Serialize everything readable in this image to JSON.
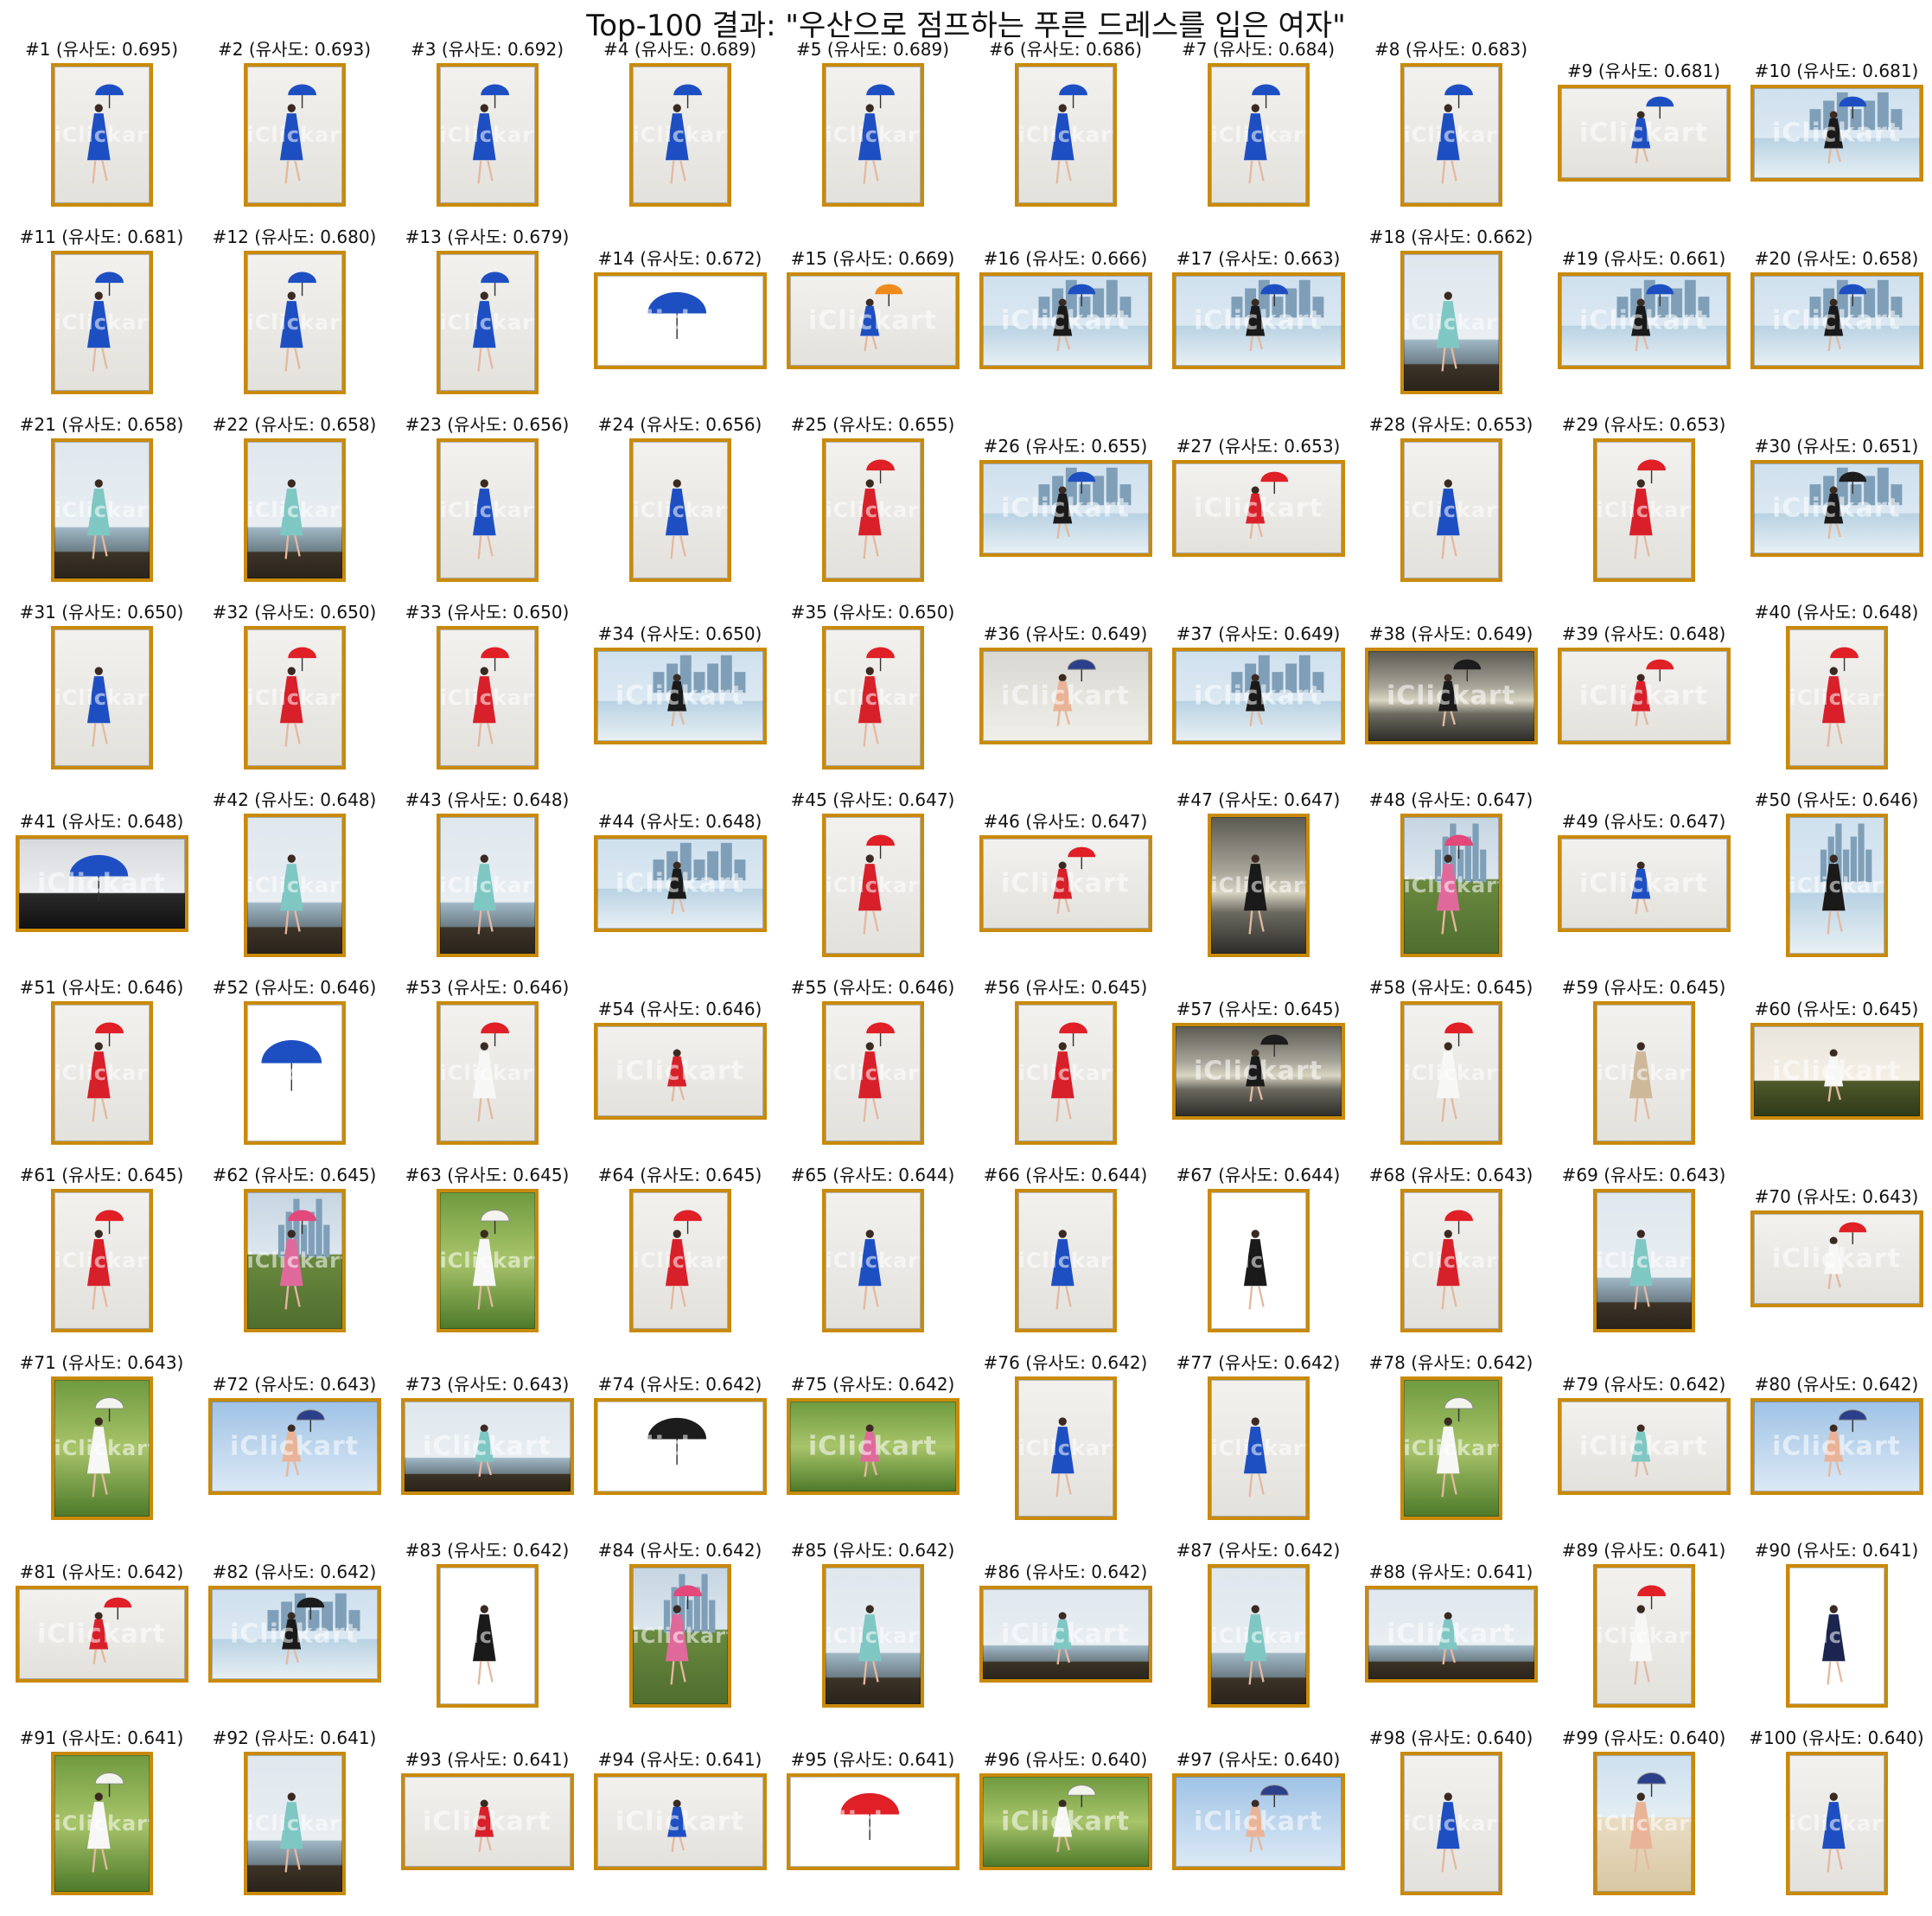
{
  "title": "Top-100 결과: \"우산으로 점프하는 푸른 드레스를 입은 여자\"",
  "watermark": "iClickart",
  "colors": {
    "frame": "#c98a0a",
    "blue": "#1e4fc2",
    "red": "#d8202a",
    "studio": "#eceae6"
  },
  "results": [
    {
      "rank": 1,
      "score": "0.695",
      "shape": "portrait",
      "scene": "studio",
      "dress": "blue",
      "umbrella": "blue"
    },
    {
      "rank": 2,
      "score": "0.693",
      "shape": "portrait",
      "scene": "studio",
      "dress": "blue",
      "umbrella": "blue"
    },
    {
      "rank": 3,
      "score": "0.692",
      "shape": "portrait",
      "scene": "studio",
      "dress": "blue",
      "umbrella": "blue"
    },
    {
      "rank": 4,
      "score": "0.689",
      "shape": "portrait",
      "scene": "studio",
      "dress": "blue",
      "umbrella": "blue"
    },
    {
      "rank": 5,
      "score": "0.689",
      "shape": "portrait",
      "scene": "studio",
      "dress": "blue",
      "umbrella": "blue"
    },
    {
      "rank": 6,
      "score": "0.686",
      "shape": "portrait",
      "scene": "studio",
      "dress": "blue",
      "umbrella": "blue"
    },
    {
      "rank": 7,
      "score": "0.684",
      "shape": "portrait",
      "scene": "studio",
      "dress": "blue",
      "umbrella": "blue"
    },
    {
      "rank": 8,
      "score": "0.683",
      "shape": "portrait",
      "scene": "studio",
      "dress": "blue",
      "umbrella": "blue"
    },
    {
      "rank": 9,
      "score": "0.681",
      "shape": "landscape",
      "scene": "studio",
      "dress": "blue",
      "umbrella": "blue"
    },
    {
      "rank": 10,
      "score": "0.681",
      "shape": "landscape",
      "scene": "city",
      "dress": "black",
      "umbrella": "blue"
    },
    {
      "rank": 11,
      "score": "0.681",
      "shape": "portrait",
      "scene": "studio",
      "dress": "blue",
      "umbrella": "blue"
    },
    {
      "rank": 12,
      "score": "0.680",
      "shape": "portrait",
      "scene": "studio",
      "dress": "blue",
      "umbrella": "blue"
    },
    {
      "rank": 13,
      "score": "0.679",
      "shape": "portrait",
      "scene": "studio",
      "dress": "blue",
      "umbrella": "blue"
    },
    {
      "rank": 14,
      "score": "0.672",
      "shape": "landscape",
      "scene": "white",
      "dress": "none",
      "umbrella": "blue"
    },
    {
      "rank": 15,
      "score": "0.669",
      "shape": "landscape",
      "scene": "studio",
      "dress": "blue",
      "umbrella": "orange"
    },
    {
      "rank": 16,
      "score": "0.666",
      "shape": "landscape",
      "scene": "city",
      "dress": "black",
      "umbrella": "blue"
    },
    {
      "rank": 17,
      "score": "0.663",
      "shape": "landscape",
      "scene": "city",
      "dress": "black",
      "umbrella": "blue"
    },
    {
      "rank": 18,
      "score": "0.662",
      "shape": "portrait",
      "scene": "sea",
      "dress": "teal",
      "umbrella": "none"
    },
    {
      "rank": 19,
      "score": "0.661",
      "shape": "landscape",
      "scene": "city",
      "dress": "black",
      "umbrella": "blue"
    },
    {
      "rank": 20,
      "score": "0.658",
      "shape": "landscape",
      "scene": "city",
      "dress": "black",
      "umbrella": "blue"
    },
    {
      "rank": 21,
      "score": "0.658",
      "shape": "portrait",
      "scene": "sea",
      "dress": "teal",
      "umbrella": "none"
    },
    {
      "rank": 22,
      "score": "0.658",
      "shape": "portrait",
      "scene": "sea",
      "dress": "teal",
      "umbrella": "none"
    },
    {
      "rank": 23,
      "score": "0.656",
      "shape": "portrait",
      "scene": "studio",
      "dress": "blue",
      "umbrella": "none"
    },
    {
      "rank": 24,
      "score": "0.656",
      "shape": "portrait",
      "scene": "studio",
      "dress": "blue",
      "umbrella": "none"
    },
    {
      "rank": 25,
      "score": "0.655",
      "shape": "portrait",
      "scene": "studio",
      "dress": "red",
      "umbrella": "red"
    },
    {
      "rank": 26,
      "score": "0.655",
      "shape": "landscape",
      "scene": "city",
      "dress": "black",
      "umbrella": "blue"
    },
    {
      "rank": 27,
      "score": "0.653",
      "shape": "landscape",
      "scene": "studio",
      "dress": "red",
      "umbrella": "red"
    },
    {
      "rank": 28,
      "score": "0.653",
      "shape": "portrait",
      "scene": "studio",
      "dress": "blue",
      "umbrella": "none"
    },
    {
      "rank": 29,
      "score": "0.653",
      "shape": "portrait",
      "scene": "studio",
      "dress": "red",
      "umbrella": "red"
    },
    {
      "rank": 30,
      "score": "0.651",
      "shape": "landscape",
      "scene": "city",
      "dress": "black",
      "umbrella": "black"
    },
    {
      "rank": 31,
      "score": "0.650",
      "shape": "portrait",
      "scene": "studio",
      "dress": "blue",
      "umbrella": "none"
    },
    {
      "rank": 32,
      "score": "0.650",
      "shape": "portrait",
      "scene": "studio",
      "dress": "red",
      "umbrella": "red"
    },
    {
      "rank": 33,
      "score": "0.650",
      "shape": "portrait",
      "scene": "studio",
      "dress": "red",
      "umbrella": "red"
    },
    {
      "rank": 34,
      "score": "0.650",
      "shape": "landscape",
      "scene": "city",
      "dress": "black",
      "umbrella": "none"
    },
    {
      "rank": 35,
      "score": "0.650",
      "shape": "portrait",
      "scene": "studio",
      "dress": "red",
      "umbrella": "red"
    },
    {
      "rank": 36,
      "score": "0.649",
      "shape": "landscape",
      "scene": "portrait",
      "dress": "skin",
      "umbrella": "stripe"
    },
    {
      "rank": 37,
      "score": "0.649",
      "shape": "landscape",
      "scene": "city",
      "dress": "black",
      "umbrella": "none"
    },
    {
      "rank": 38,
      "score": "0.649",
      "shape": "landscape",
      "scene": "sunset",
      "dress": "black",
      "umbrella": "black"
    },
    {
      "rank": 39,
      "score": "0.648",
      "shape": "landscape",
      "scene": "studio",
      "dress": "red",
      "umbrella": "red"
    },
    {
      "rank": 40,
      "score": "0.648",
      "shape": "portrait",
      "scene": "studio",
      "dress": "red",
      "umbrella": "red"
    },
    {
      "rank": 41,
      "score": "0.648",
      "shape": "landscape",
      "scene": "umbrellas",
      "dress": "none",
      "umbrella": "blue"
    },
    {
      "rank": 42,
      "score": "0.648",
      "shape": "portrait",
      "scene": "sea",
      "dress": "teal",
      "umbrella": "none"
    },
    {
      "rank": 43,
      "score": "0.648",
      "shape": "portrait",
      "scene": "sea",
      "dress": "teal",
      "umbrella": "none"
    },
    {
      "rank": 44,
      "score": "0.648",
      "shape": "landscape",
      "scene": "city",
      "dress": "black",
      "umbrella": "none"
    },
    {
      "rank": 45,
      "score": "0.647",
      "shape": "portrait",
      "scene": "studio",
      "dress": "red",
      "umbrella": "red"
    },
    {
      "rank": 46,
      "score": "0.647",
      "shape": "landscape",
      "scene": "studio",
      "dress": "red",
      "umbrella": "red"
    },
    {
      "rank": 47,
      "score": "0.647",
      "shape": "portrait",
      "scene": "sunset",
      "dress": "black",
      "umbrella": "none"
    },
    {
      "rank": 48,
      "score": "0.647",
      "shape": "portrait",
      "scene": "park-city",
      "dress": "pink",
      "umbrella": "rainbow"
    },
    {
      "rank": 49,
      "score": "0.647",
      "shape": "landscape",
      "scene": "studio",
      "dress": "blue",
      "umbrella": "none"
    },
    {
      "rank": 50,
      "score": "0.646",
      "shape": "portrait",
      "scene": "city",
      "dress": "black",
      "umbrella": "none"
    },
    {
      "rank": 51,
      "score": "0.646",
      "shape": "portrait",
      "scene": "studio",
      "dress": "red",
      "umbrella": "red"
    },
    {
      "rank": 52,
      "score": "0.646",
      "shape": "portrait",
      "scene": "white",
      "dress": "none",
      "umbrella": "blue"
    },
    {
      "rank": 53,
      "score": "0.646",
      "shape": "portrait",
      "scene": "studio",
      "dress": "white",
      "umbrella": "red"
    },
    {
      "rank": 54,
      "score": "0.646",
      "shape": "landscape",
      "scene": "studio",
      "dress": "red",
      "umbrella": "none"
    },
    {
      "rank": 55,
      "score": "0.646",
      "shape": "portrait",
      "scene": "studio",
      "dress": "red",
      "umbrella": "red"
    },
    {
      "rank": 56,
      "score": "0.645",
      "shape": "portrait",
      "scene": "studio",
      "dress": "red",
      "umbrella": "red"
    },
    {
      "rank": 57,
      "score": "0.645",
      "shape": "landscape",
      "scene": "sunset",
      "dress": "black",
      "umbrella": "black"
    },
    {
      "rank": 58,
      "score": "0.645",
      "shape": "portrait",
      "scene": "studio",
      "dress": "white",
      "umbrella": "red"
    },
    {
      "rank": 59,
      "score": "0.645",
      "shape": "portrait",
      "scene": "studio",
      "dress": "beige",
      "umbrella": "none"
    },
    {
      "rank": 60,
      "score": "0.645",
      "shape": "landscape",
      "scene": "field",
      "dress": "white",
      "umbrella": "none"
    },
    {
      "rank": 61,
      "score": "0.645",
      "shape": "portrait",
      "scene": "studio",
      "dress": "red",
      "umbrella": "red"
    },
    {
      "rank": 62,
      "score": "0.645",
      "shape": "portrait",
      "scene": "park-city",
      "dress": "pink",
      "umbrella": "rainbow"
    },
    {
      "rank": 63,
      "score": "0.645",
      "shape": "portrait",
      "scene": "forest",
      "dress": "white",
      "umbrella": "white"
    },
    {
      "rank": 64,
      "score": "0.645",
      "shape": "portrait",
      "scene": "studio",
      "dress": "red",
      "umbrella": "red"
    },
    {
      "rank": 65,
      "score": "0.644",
      "shape": "portrait",
      "scene": "studio",
      "dress": "blue",
      "umbrella": "none"
    },
    {
      "rank": 66,
      "score": "0.644",
      "shape": "portrait",
      "scene": "studio",
      "dress": "blue",
      "umbrella": "none"
    },
    {
      "rank": 67,
      "score": "0.644",
      "shape": "portrait",
      "scene": "white",
      "dress": "black",
      "umbrella": "none"
    },
    {
      "rank": 68,
      "score": "0.643",
      "shape": "portrait",
      "scene": "studio",
      "dress": "red",
      "umbrella": "red"
    },
    {
      "rank": 69,
      "score": "0.643",
      "shape": "portrait",
      "scene": "sea",
      "dress": "teal",
      "umbrella": "none"
    },
    {
      "rank": 70,
      "score": "0.643",
      "shape": "landscape",
      "scene": "studio",
      "dress": "white",
      "umbrella": "red"
    },
    {
      "rank": 71,
      "score": "0.643",
      "shape": "portrait",
      "scene": "forest",
      "dress": "white",
      "umbrella": "white"
    },
    {
      "rank": 72,
      "score": "0.643",
      "shape": "landscape",
      "scene": "sky",
      "dress": "skin",
      "umbrella": "stripe"
    },
    {
      "rank": 73,
      "score": "0.643",
      "shape": "landscape",
      "scene": "sea",
      "dress": "teal",
      "umbrella": "none"
    },
    {
      "rank": 74,
      "score": "0.642",
      "shape": "landscape",
      "scene": "white",
      "dress": "none",
      "umbrella": "black"
    },
    {
      "rank": 75,
      "score": "0.642",
      "shape": "landscape",
      "scene": "forest",
      "dress": "pink",
      "umbrella": "none"
    },
    {
      "rank": 76,
      "score": "0.642",
      "shape": "portrait",
      "scene": "studio",
      "dress": "blue",
      "umbrella": "none"
    },
    {
      "rank": 77,
      "score": "0.642",
      "shape": "portrait",
      "scene": "studio",
      "dress": "blue",
      "umbrella": "none"
    },
    {
      "rank": 78,
      "score": "0.642",
      "shape": "portrait",
      "scene": "forest",
      "dress": "white",
      "umbrella": "white"
    },
    {
      "rank": 79,
      "score": "0.642",
      "shape": "landscape",
      "scene": "studio",
      "dress": "teal",
      "umbrella": "none"
    },
    {
      "rank": 80,
      "score": "0.642",
      "shape": "landscape",
      "scene": "sky",
      "dress": "skin",
      "umbrella": "stripe"
    },
    {
      "rank": 81,
      "score": "0.642",
      "shape": "landscape",
      "scene": "studio",
      "dress": "red",
      "umbrella": "red"
    },
    {
      "rank": 82,
      "score": "0.642",
      "shape": "landscape",
      "scene": "city",
      "dress": "black",
      "umbrella": "black"
    },
    {
      "rank": 83,
      "score": "0.642",
      "shape": "portrait",
      "scene": "white",
      "dress": "black",
      "umbrella": "none"
    },
    {
      "rank": 84,
      "score": "0.642",
      "shape": "portrait",
      "scene": "park-city",
      "dress": "pink",
      "umbrella": "rainbow"
    },
    {
      "rank": 85,
      "score": "0.642",
      "shape": "portrait",
      "scene": "sea",
      "dress": "teal",
      "umbrella": "none"
    },
    {
      "rank": 86,
      "score": "0.642",
      "shape": "landscape",
      "scene": "sea",
      "dress": "teal",
      "umbrella": "none"
    },
    {
      "rank": 87,
      "score": "0.642",
      "shape": "portrait",
      "scene": "sea",
      "dress": "teal",
      "umbrella": "none"
    },
    {
      "rank": 88,
      "score": "0.641",
      "shape": "landscape",
      "scene": "sea",
      "dress": "teal",
      "umbrella": "none"
    },
    {
      "rank": 89,
      "score": "0.641",
      "shape": "portrait",
      "scene": "studio",
      "dress": "white",
      "umbrella": "red"
    },
    {
      "rank": 90,
      "score": "0.641",
      "shape": "portrait",
      "scene": "white",
      "dress": "navy",
      "umbrella": "none"
    },
    {
      "rank": 91,
      "score": "0.641",
      "shape": "portrait",
      "scene": "forest",
      "dress": "white",
      "umbrella": "white"
    },
    {
      "rank": 92,
      "score": "0.641",
      "shape": "portrait",
      "scene": "sea",
      "dress": "teal",
      "umbrella": "none"
    },
    {
      "rank": 93,
      "score": "0.641",
      "shape": "landscape",
      "scene": "studio",
      "dress": "red",
      "umbrella": "none"
    },
    {
      "rank": 94,
      "score": "0.641",
      "shape": "landscape",
      "scene": "studio",
      "dress": "blue",
      "umbrella": "none"
    },
    {
      "rank": 95,
      "score": "0.641",
      "shape": "landscape",
      "scene": "white",
      "dress": "none",
      "umbrella": "red"
    },
    {
      "rank": 96,
      "score": "0.640",
      "shape": "landscape",
      "scene": "forest",
      "dress": "white",
      "umbrella": "white"
    },
    {
      "rank": 97,
      "score": "0.640",
      "shape": "landscape",
      "scene": "sky",
      "dress": "skin",
      "umbrella": "stripe"
    },
    {
      "rank": 98,
      "score": "0.640",
      "shape": "portrait",
      "scene": "studio",
      "dress": "blue",
      "umbrella": "none"
    },
    {
      "rank": 99,
      "score": "0.640",
      "shape": "portrait",
      "scene": "beach",
      "dress": "skin",
      "umbrella": "stripe"
    },
    {
      "rank": 100,
      "score": "0.640",
      "shape": "portrait",
      "scene": "studio",
      "dress": "blue",
      "umbrella": "none"
    }
  ]
}
